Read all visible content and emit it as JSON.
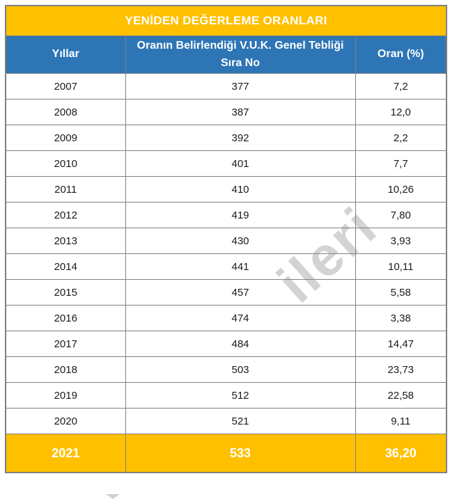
{
  "title_bar": "YENİDEN DEĞERLEME ORANLARI",
  "colors": {
    "title_background": "#FFC000",
    "header_background": "#2E75B6",
    "highlight_background": "#FFC000",
    "border_gray": "#808080",
    "header_text": "#FFFFFF",
    "data_text": "#1A1A1A"
  },
  "table": {
    "columns": [
      {
        "key": "year",
        "label": "Yıllar"
      },
      {
        "key": "teblig",
        "label": "Oranın Belirlendiği V.U.K. Genel Tebliği Sıra No"
      },
      {
        "key": "oran",
        "label": "Oran (%)"
      }
    ],
    "rows": [
      {
        "year": "2007",
        "teblig": "377",
        "oran": "7,2"
      },
      {
        "year": "2008",
        "teblig": "387",
        "oran": "12,0"
      },
      {
        "year": "2009",
        "teblig": "392",
        "oran": "2,2"
      },
      {
        "year": "2010",
        "teblig": "401",
        "oran": "7,7"
      },
      {
        "year": "2011",
        "teblig": "410",
        "oran": "10,26"
      },
      {
        "year": "2012",
        "teblig": "419",
        "oran": "7,80"
      },
      {
        "year": "2013",
        "teblig": "430",
        "oran": "3,93"
      },
      {
        "year": "2014",
        "teblig": "441",
        "oran": "10,11"
      },
      {
        "year": "2015",
        "teblig": "457",
        "oran": "5,58"
      },
      {
        "year": "2016",
        "teblig": "474",
        "oran": "3,38"
      },
      {
        "year": "2017",
        "teblig": "484",
        "oran": "14,47"
      },
      {
        "year": "2018",
        "teblig": "503",
        "oran": "23,73"
      },
      {
        "year": "2019",
        "teblig": "512",
        "oran": "22,58"
      },
      {
        "year": "2020",
        "teblig": "521",
        "oran": "9,11"
      }
    ],
    "highlight_row": {
      "year": "2021",
      "teblig": "533",
      "oran": "36,20"
    }
  },
  "watermark": {
    "visible_fragment": "ileri"
  }
}
